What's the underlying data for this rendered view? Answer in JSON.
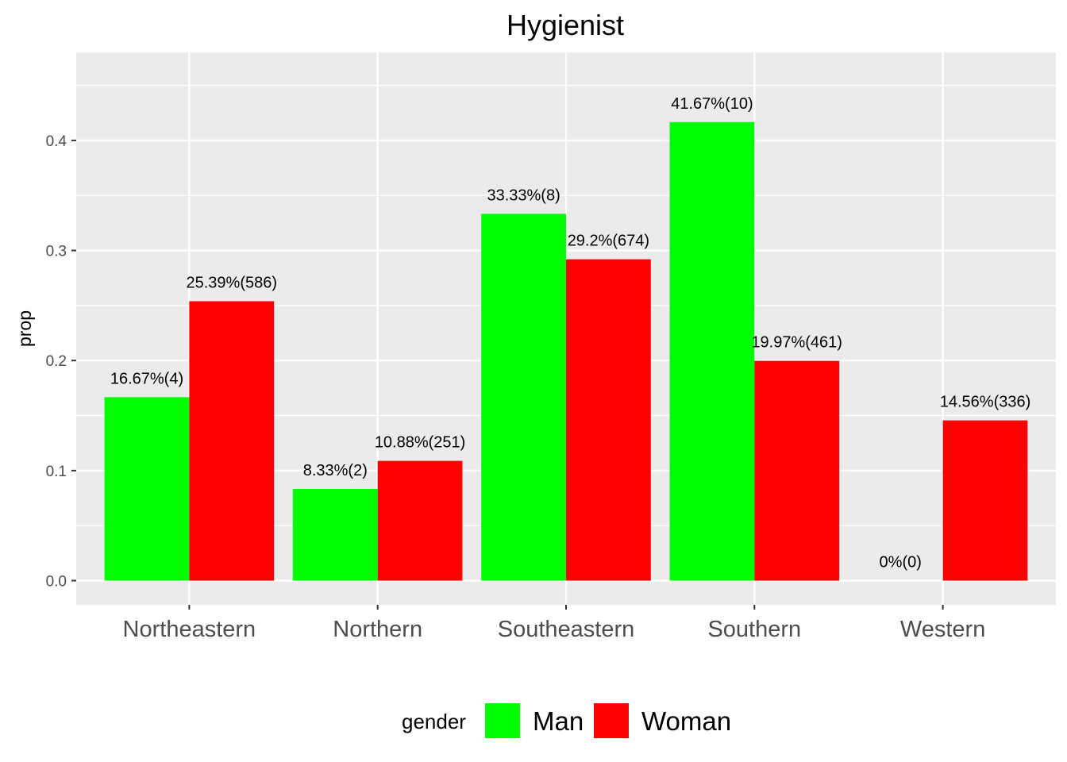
{
  "chart_data": {
    "type": "bar",
    "title": "Hygienist",
    "xlabel": "",
    "ylabel": "prop",
    "ylim": [
      -0.022,
      0.48
    ],
    "yticks": [
      0.0,
      0.1,
      0.2,
      0.3,
      0.4
    ],
    "ytick_labels": [
      "0.0",
      "0.1",
      "0.2",
      "0.3",
      "0.4"
    ],
    "categories": [
      "Northeastern",
      "Northern",
      "Southeastern",
      "Southern",
      "Western"
    ],
    "series": [
      {
        "name": "Man",
        "color": "#00ff00",
        "values": [
          0.1667,
          0.0833,
          0.3333,
          0.4167,
          0.0
        ],
        "labels": [
          "16.67%(4)",
          "8.33%(2)",
          "33.33%(8)",
          "41.67%(10)",
          "0%(0)"
        ]
      },
      {
        "name": "Woman",
        "color": "#ff0000",
        "values": [
          0.2539,
          0.1088,
          0.292,
          0.1997,
          0.1456
        ],
        "labels": [
          "25.39%(586)",
          "10.88%(251)",
          "29.2%(674)",
          "19.97%(461)",
          "14.56%(336)"
        ]
      }
    ],
    "legend": {
      "title": "gender",
      "position": "bottom"
    },
    "grid": true,
    "panel_background": "#ebebeb"
  }
}
